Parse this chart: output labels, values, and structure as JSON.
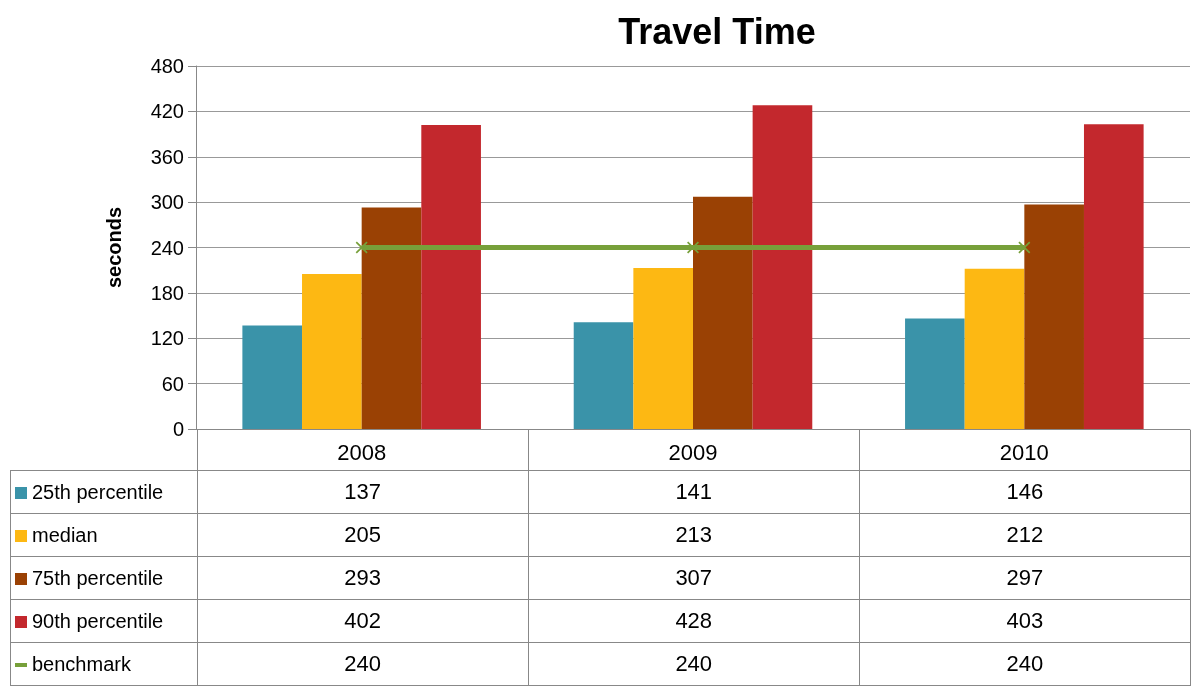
{
  "chart_data": {
    "type": "bar",
    "title": "Travel Time",
    "ylabel": "seconds",
    "categories": [
      "2008",
      "2009",
      "2010"
    ],
    "series": [
      {
        "name": "25th percentile",
        "color": "#3a93a9",
        "values": [
          137,
          141,
          146
        ]
      },
      {
        "name": "median",
        "color": "#fdb813",
        "values": [
          205,
          213,
          212
        ]
      },
      {
        "name": "75th percentile",
        "color": "#9a4104",
        "values": [
          293,
          307,
          297
        ]
      },
      {
        "name": "90th percentile",
        "color": "#c3282d",
        "values": [
          402,
          428,
          403
        ]
      },
      {
        "name": "benchmark",
        "type": "line",
        "color": "#77a03a",
        "values": [
          240,
          240,
          240
        ]
      }
    ],
    "ylim": [
      0,
      480
    ],
    "yticks": [
      0,
      60,
      120,
      180,
      240,
      300,
      360,
      420,
      480
    ],
    "grid": "y",
    "legend": "bottom left",
    "data_labels": true,
    "marker": "cross"
  }
}
